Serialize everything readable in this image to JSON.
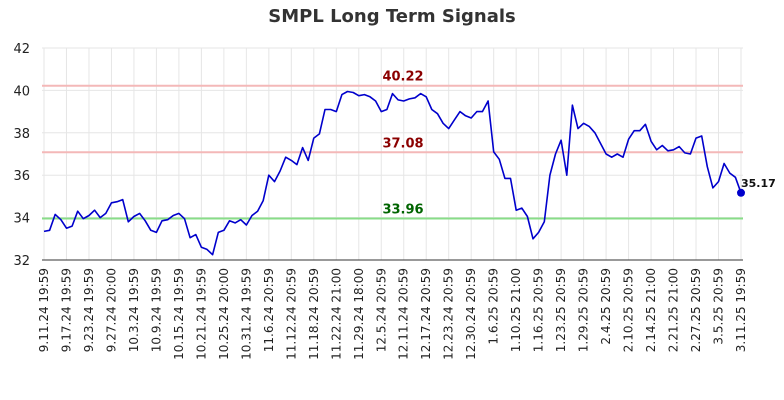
{
  "chart_data": {
    "type": "line",
    "title": "SMPL Long Term Signals",
    "xlabel": "",
    "ylabel": "",
    "ylim": [
      32,
      42
    ],
    "yticks": [
      32,
      34,
      36,
      38,
      40,
      42
    ],
    "grid": true,
    "x_tick_labels": [
      "9.11.24 19:59",
      "9.17.24 19:59",
      "9.23.24 19:59",
      "9.27.24 20:00",
      "10.3.24 19:59",
      "10.9.24 19:59",
      "10.15.24 19:59",
      "10.21.24 19:59",
      "10.25.24 20:00",
      "10.31.24 19:59",
      "11.6.24 20:59",
      "11.12.24 20:59",
      "11.18.24 20:59",
      "11.22.24 21:00",
      "11.29.24 18:00",
      "12.5.24 20:59",
      "12.11.24 20:59",
      "12.17.24 20:59",
      "12.23.24 20:59",
      "12.30.24 20:59",
      "1.6.25 20:59",
      "1.10.25 21:00",
      "1.16.25 20:59",
      "1.23.25 20:59",
      "1.29.25 20:59",
      "2.4.25 20:59",
      "2.10.25 20:59",
      "2.14.25 21:00",
      "2.21.25 21:00",
      "2.27.25 20:59",
      "3.5.25 20:59",
      "3.11.25 19:59"
    ],
    "series": [
      {
        "values": [
          33.35,
          33.4,
          34.15,
          33.9,
          33.5,
          33.6,
          34.3,
          33.95,
          34.1,
          34.35,
          34.0,
          34.2,
          34.7,
          34.75,
          34.85,
          33.8,
          34.05,
          34.2,
          33.85,
          33.4,
          33.3,
          33.85,
          33.9,
          34.1,
          34.2,
          33.95,
          33.05,
          33.2,
          32.6,
          32.5,
          32.25,
          33.3,
          33.4,
          33.85,
          33.75,
          33.9,
          33.65,
          34.1,
          34.3,
          34.8,
          36.0,
          35.7,
          36.2,
          36.85,
          36.7,
          36.5,
          37.3,
          36.7,
          37.75,
          37.95,
          39.1,
          39.1,
          39.0,
          39.8,
          39.95,
          39.9,
          39.75,
          39.8,
          39.7,
          39.5,
          39.0,
          39.1,
          39.85,
          39.55,
          39.5,
          39.6,
          39.65,
          39.85,
          39.7,
          39.1,
          38.9,
          38.45,
          38.2,
          38.6,
          39.0,
          38.8,
          38.7,
          39.0,
          39.0,
          39.5,
          37.1,
          36.75,
          35.85,
          35.85,
          34.35,
          34.45,
          34.05,
          33.0,
          33.3,
          33.8,
          36.0,
          37.0,
          37.65,
          36.0,
          39.3,
          38.2,
          38.45,
          38.3,
          38.0,
          37.5,
          37.0,
          36.85,
          37.0,
          36.85,
          37.7,
          38.1,
          38.1,
          38.4,
          37.6,
          37.2,
          37.4,
          37.15,
          37.2,
          37.35,
          37.05,
          37.0,
          37.75,
          37.85,
          36.4,
          35.4,
          35.7,
          36.55,
          36.1,
          35.9,
          35.17
        ],
        "color": "#0000cc"
      }
    ],
    "reference_lines": [
      {
        "value": 40.22,
        "label": "40.22",
        "line_color": "#f4b8b8",
        "text_color": "#8b0000"
      },
      {
        "value": 37.08,
        "label": "37.08",
        "line_color": "#f4b8b8",
        "text_color": "#8b0000"
      },
      {
        "value": 33.96,
        "label": "33.96",
        "line_color": "#88dd88",
        "text_color": "#006400"
      }
    ],
    "last_value_label": "35.17"
  }
}
